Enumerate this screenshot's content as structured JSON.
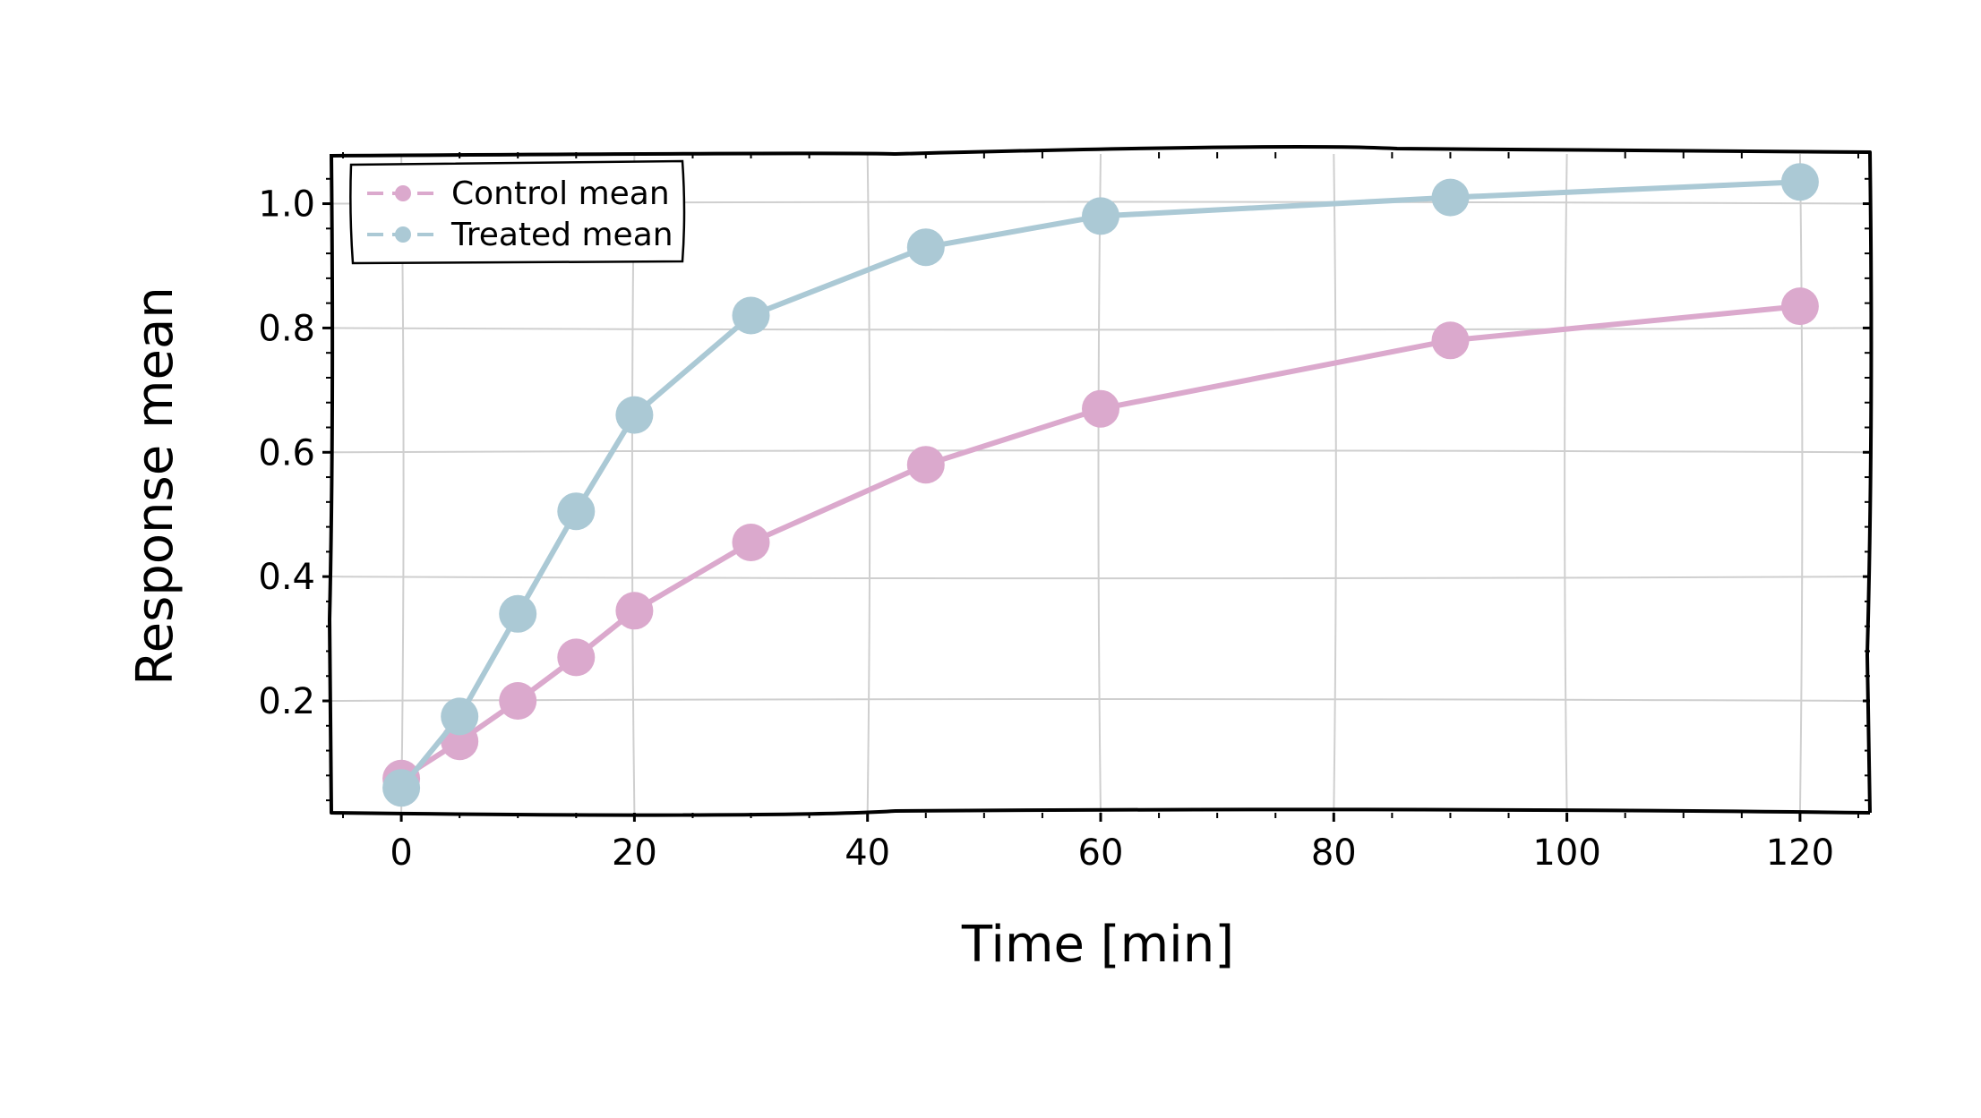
{
  "chart_data": {
    "type": "line",
    "title": "",
    "xlabel": "Time [min]",
    "ylabel": "Response mean",
    "xlim": [
      -6,
      126
    ],
    "ylim": [
      0.02,
      1.08
    ],
    "x_ticks": [
      0,
      20,
      40,
      60,
      80,
      100,
      120
    ],
    "x_tick_labels": [
      "0",
      "20",
      "40",
      "60",
      "80",
      "100",
      "120"
    ],
    "y_ticks": [
      0.2,
      0.4,
      0.6,
      0.8,
      1.0
    ],
    "y_tick_labels": [
      "0.2",
      "0.4",
      "0.6",
      "0.8",
      "1.0"
    ],
    "grid": true,
    "legend_position": "top-left",
    "x": [
      0,
      5,
      10,
      15,
      20,
      30,
      45,
      60,
      90,
      120
    ],
    "series": [
      {
        "name": "Control mean",
        "color": "#dba9cd",
        "values": [
          0.075,
          0.135,
          0.2,
          0.27,
          0.345,
          0.455,
          0.58,
          0.67,
          0.78,
          0.835
        ]
      },
      {
        "name": "Treated mean",
        "color": "#abc9d5",
        "values": [
          0.06,
          0.175,
          0.34,
          0.505,
          0.66,
          0.82,
          0.93,
          0.98,
          1.01,
          1.035
        ]
      }
    ]
  }
}
